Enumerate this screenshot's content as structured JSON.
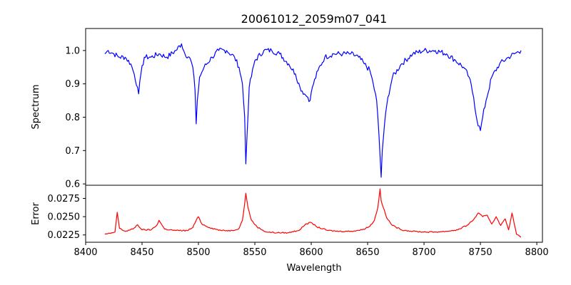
{
  "figure": {
    "title": "20061012_2059m07_041"
  },
  "chart_data": [
    {
      "type": "line",
      "panel": "top",
      "title": "20061012_2059m07_041",
      "xlabel": "",
      "ylabel": "Spectrum",
      "xlim": [
        8400,
        8805
      ],
      "ylim": [
        0.596,
        1.066
      ],
      "yticks": [
        0.6,
        0.7,
        0.8,
        0.9,
        1.0
      ],
      "ytick_labels": [
        "0.6",
        "0.7",
        "0.8",
        "0.9",
        "1.0"
      ],
      "xticks_labeled": false,
      "grid": false,
      "series": [
        {
          "color": "#0000ff",
          "x": [
            8417,
            8420,
            8425,
            8430,
            8435,
            8440,
            8443,
            8446,
            8447,
            8449,
            8452,
            8458,
            8465,
            8472,
            8480,
            8485,
            8488,
            8492,
            8495,
            8497,
            8498,
            8499,
            8501,
            8505,
            8512,
            8518,
            8525,
            8532,
            8536,
            8539,
            8541,
            8542,
            8543,
            8545,
            8550,
            8558,
            8565,
            8572,
            8580,
            8586,
            8590,
            8594,
            8597,
            8599,
            8601,
            8606,
            8612,
            8620,
            8628,
            8635,
            8642,
            8647,
            8652,
            8655,
            8658,
            8660,
            8662,
            8663,
            8665,
            8668,
            8672,
            8680,
            8690,
            8700,
            8710,
            8720,
            8728,
            8735,
            8740,
            8744,
            8747,
            8750,
            8752,
            8755,
            8760,
            8767,
            8775,
            8780,
            8786
          ],
          "values": [
            0.99,
            1.0,
            0.99,
            0.98,
            0.98,
            0.96,
            0.93,
            0.89,
            0.87,
            0.93,
            0.98,
            0.98,
            0.99,
            0.98,
            1.0,
            1.02,
            0.99,
            0.98,
            0.95,
            0.88,
            0.78,
            0.85,
            0.92,
            0.95,
            0.98,
            1.0,
            1.0,
            0.98,
            0.95,
            0.9,
            0.8,
            0.66,
            0.74,
            0.89,
            0.97,
            1.0,
            1.0,
            0.99,
            0.96,
            0.93,
            0.89,
            0.87,
            0.86,
            0.85,
            0.89,
            0.94,
            0.98,
            0.99,
            0.99,
            0.99,
            0.98,
            0.96,
            0.94,
            0.9,
            0.85,
            0.75,
            0.62,
            0.7,
            0.78,
            0.86,
            0.92,
            0.96,
            0.99,
            1.0,
            1.0,
            0.99,
            0.97,
            0.95,
            0.92,
            0.86,
            0.79,
            0.76,
            0.8,
            0.85,
            0.92,
            0.96,
            0.98,
            0.99,
            1.0
          ]
        }
      ]
    },
    {
      "type": "line",
      "panel": "bottom",
      "xlabel": "Wavelength",
      "ylabel": "Error",
      "xlim": [
        8400,
        8805
      ],
      "ylim": [
        0.0215,
        0.0293
      ],
      "xticks": [
        8400,
        8450,
        8500,
        8550,
        8600,
        8650,
        8700,
        8750,
        8800
      ],
      "xtick_labels": [
        "8400",
        "8450",
        "8500",
        "8550",
        "8600",
        "8650",
        "8700",
        "8750",
        "8800"
      ],
      "yticks": [
        0.0225,
        0.025,
        0.0275
      ],
      "ytick_labels": [
        "0.0225",
        "0.0250",
        "0.0275"
      ],
      "grid": false,
      "series": [
        {
          "color": "#ff0000",
          "x": [
            8417,
            8422,
            8426,
            8428,
            8430,
            8435,
            8442,
            8446,
            8450,
            8458,
            8463,
            8465,
            8470,
            8480,
            8490,
            8495,
            8498,
            8500,
            8503,
            8510,
            8520,
            8530,
            8536,
            8539,
            8541,
            8542,
            8544,
            8547,
            8552,
            8560,
            8570,
            8580,
            8590,
            8595,
            8600,
            8605,
            8615,
            8625,
            8635,
            8645,
            8652,
            8656,
            8659,
            8661,
            8662,
            8664,
            8667,
            8672,
            8680,
            8690,
            8700,
            8710,
            8720,
            8730,
            8738,
            8744,
            8748,
            8752,
            8756,
            8760,
            8764,
            8768,
            8772,
            8775,
            8778,
            8782,
            8786
          ],
          "values": [
            0.0226,
            0.0227,
            0.0229,
            0.0256,
            0.0234,
            0.023,
            0.0233,
            0.0239,
            0.0232,
            0.0232,
            0.0238,
            0.0245,
            0.0233,
            0.0231,
            0.0231,
            0.0235,
            0.0245,
            0.025,
            0.024,
            0.0235,
            0.0231,
            0.0231,
            0.0234,
            0.0245,
            0.0268,
            0.0282,
            0.0262,
            0.0245,
            0.0236,
            0.0229,
            0.0228,
            0.0228,
            0.0232,
            0.024,
            0.0242,
            0.0236,
            0.0231,
            0.023,
            0.023,
            0.0232,
            0.0237,
            0.0245,
            0.0262,
            0.0288,
            0.0272,
            0.0262,
            0.0248,
            0.0238,
            0.0232,
            0.023,
            0.0229,
            0.0229,
            0.023,
            0.0232,
            0.0238,
            0.0246,
            0.0255,
            0.025,
            0.0252,
            0.024,
            0.025,
            0.0238,
            0.0247,
            0.0232,
            0.0255,
            0.0226,
            0.0222
          ]
        }
      ]
    }
  ]
}
